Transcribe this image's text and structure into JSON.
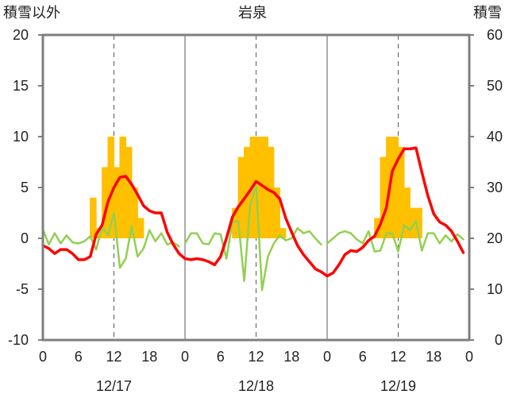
{
  "chart_data": {
    "type": "bar+line",
    "title": "岩泉",
    "left_axis_label": "積雪以外",
    "right_axis_label": "積雪",
    "left_ylim": [
      -10,
      20
    ],
    "left_ticks": [
      "20",
      "15",
      "10",
      "5",
      "0",
      "-5",
      "-10"
    ],
    "right_ylim": [
      0,
      60
    ],
    "right_ticks": [
      "60",
      "50",
      "40",
      "30",
      "20",
      "10",
      "0"
    ],
    "x_ticks": [
      "0",
      "6",
      "12",
      "18",
      "0",
      "6",
      "12",
      "18",
      "0",
      "6",
      "12",
      "18",
      "0"
    ],
    "date_labels": [
      "12/17",
      "12/18",
      "12/19"
    ],
    "grid": "dashed vertical at 12h, solid vertical at day boundaries",
    "colors": {
      "bars": "#ffc000",
      "red_line": "#ff0000",
      "green_line": "#92d050",
      "purple_line": "#7030a0",
      "frame": "#7f7f7f",
      "grid": "#595959"
    },
    "series": [
      {
        "kind": "bar",
        "axis": "left",
        "hours": [
          8,
          9,
          10,
          11,
          12,
          13,
          14,
          15,
          16,
          32,
          33,
          34,
          35,
          36,
          37,
          38,
          39,
          40,
          56,
          57,
          58,
          59,
          60,
          61,
          62,
          63
        ],
        "values": [
          4,
          1,
          7,
          10,
          7,
          10,
          9,
          5,
          2,
          3,
          8,
          9,
          10,
          10,
          10,
          9,
          5,
          1,
          2,
          8,
          10,
          10,
          9,
          5,
          3,
          3
        ]
      },
      {
        "kind": "line",
        "axis": "left",
        "color": "red",
        "hours": [
          0,
          1,
          2,
          3,
          4,
          5,
          6,
          7,
          8,
          9,
          10,
          11,
          12,
          13,
          14,
          15,
          16,
          17,
          18,
          19,
          20,
          21,
          22,
          23,
          24,
          25,
          26,
          27,
          28,
          29,
          30,
          31,
          32,
          33,
          34,
          35,
          36,
          37,
          38,
          39,
          40,
          41,
          42,
          43,
          44,
          45,
          46,
          47,
          48,
          49,
          50,
          51,
          52,
          53,
          54,
          55,
          56,
          57,
          58,
          59,
          60,
          61,
          62,
          63,
          64,
          65,
          66,
          67,
          68,
          69,
          70,
          71
        ],
        "values": [
          -0.7,
          -1.0,
          -1.5,
          -1.1,
          -1.1,
          -1.5,
          -2.1,
          -2.1,
          -1.8,
          0.4,
          1.3,
          3.6,
          5.0,
          6.0,
          6.1,
          5.3,
          4.3,
          3.2,
          2.7,
          2.5,
          2.5,
          0.6,
          -0.6,
          -1.5,
          -2.0,
          -2.1,
          -2.0,
          -2.1,
          -2.3,
          -2.6,
          -1.8,
          0.0,
          2.1,
          3.1,
          3.9,
          4.7,
          5.6,
          5.2,
          4.8,
          4.5,
          3.9,
          2.0,
          0.6,
          -0.7,
          -1.6,
          -2.3,
          -3.0,
          -3.3,
          -3.7,
          -3.4,
          -2.6,
          -1.6,
          -1.2,
          -1.3,
          -0.9,
          -0.2,
          0.2,
          1.4,
          3.0,
          6.6,
          7.8,
          8.8,
          8.8,
          8.9,
          6.5,
          4.2,
          2.4,
          1.6,
          1.3,
          0.7,
          -0.3,
          -1.4
        ]
      },
      {
        "kind": "line",
        "axis": "left",
        "color": "green",
        "hours": [
          0,
          1,
          2,
          3,
          4,
          5,
          6,
          7,
          8,
          9,
          10,
          11,
          12,
          13,
          14,
          15,
          16,
          17,
          18,
          19,
          20,
          21,
          22,
          23,
          null,
          24,
          25,
          26,
          27,
          28,
          29,
          30,
          31,
          32,
          33,
          34,
          35,
          36,
          37,
          38,
          39,
          40,
          41,
          42,
          43,
          44,
          45,
          46,
          47,
          null,
          48,
          49,
          50,
          51,
          52,
          53,
          54,
          55,
          56,
          57,
          58,
          59,
          60,
          61,
          62,
          63,
          64,
          65,
          66,
          67,
          68,
          69,
          70,
          71
        ],
        "values": [
          0.9,
          -0.6,
          0.5,
          -0.5,
          0.3,
          -0.4,
          -0.5,
          -0.3,
          0.2,
          -1.1,
          1.1,
          0.3,
          2.5,
          -2.9,
          -2.0,
          1.2,
          -1.8,
          -1.0,
          0.8,
          -0.3,
          0.5,
          -0.6,
          -0.4,
          -0.8,
          null,
          -0.5,
          0.5,
          0.5,
          -0.5,
          -0.6,
          0.5,
          0.4,
          -2.0,
          1.6,
          1.7,
          -4.2,
          3.2,
          5.3,
          -5.1,
          -1.8,
          -0.5,
          0.3,
          -0.2,
          0.0,
          1.0,
          0.5,
          0.7,
          0.0,
          -0.6,
          null,
          -0.5,
          0.0,
          0.5,
          0.7,
          0.5,
          -0.1,
          -0.5,
          0.7,
          -1.3,
          -1.2,
          0.5,
          0.5,
          -1.3,
          1.3,
          0.8,
          1.7,
          -1.2,
          0.5,
          0.5,
          -0.5,
          0.3,
          -0.3,
          0.4,
          -0.1
        ]
      },
      {
        "kind": "line",
        "axis": "right",
        "color": "purple",
        "hours": [
          0,
          72
        ],
        "values": [
          0,
          0
        ]
      }
    ]
  }
}
